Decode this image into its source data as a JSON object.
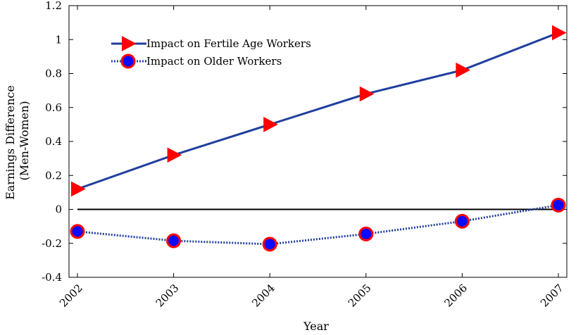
{
  "chart_data": {
    "type": "line",
    "x": [
      2002,
      2003,
      2004,
      2005,
      2006,
      2007
    ],
    "xticks": [
      "2002",
      "2003",
      "2004",
      "2005",
      "2006",
      "2007"
    ],
    "xlabel": "Year",
    "ylabel": [
      "Earnings Difference",
      "(Men-Women)"
    ],
    "ylim": [
      -0.4,
      1.2
    ],
    "yticks": [
      "-0.4",
      "-0.2",
      "0",
      "0.2",
      "0.4",
      "0.6",
      "0.8",
      "1",
      "1.2"
    ],
    "yticks_values": [
      -0.4,
      -0.2,
      0,
      0.2,
      0.4,
      0.6,
      0.8,
      1,
      1.2
    ],
    "reference_line_y": 0,
    "grid": false,
    "legend_position": "top-left",
    "series": [
      {
        "name": "Impact on Fertile Age Workers",
        "values": [
          0.12,
          0.32,
          0.5,
          0.68,
          0.82,
          1.04
        ],
        "line_color": "#1f3f9e",
        "line_style": "solid",
        "marker": "triangle-right",
        "marker_color": "#ff0000"
      },
      {
        "name": "Impact on Older Workers",
        "values": [
          -0.13,
          -0.185,
          -0.205,
          -0.145,
          -0.07,
          0.025
        ],
        "line_color": "#1f3f9e",
        "line_style": "dotted",
        "marker": "circle",
        "marker_color": "#ff0000",
        "marker_fill": "#0a0aff"
      }
    ]
  }
}
